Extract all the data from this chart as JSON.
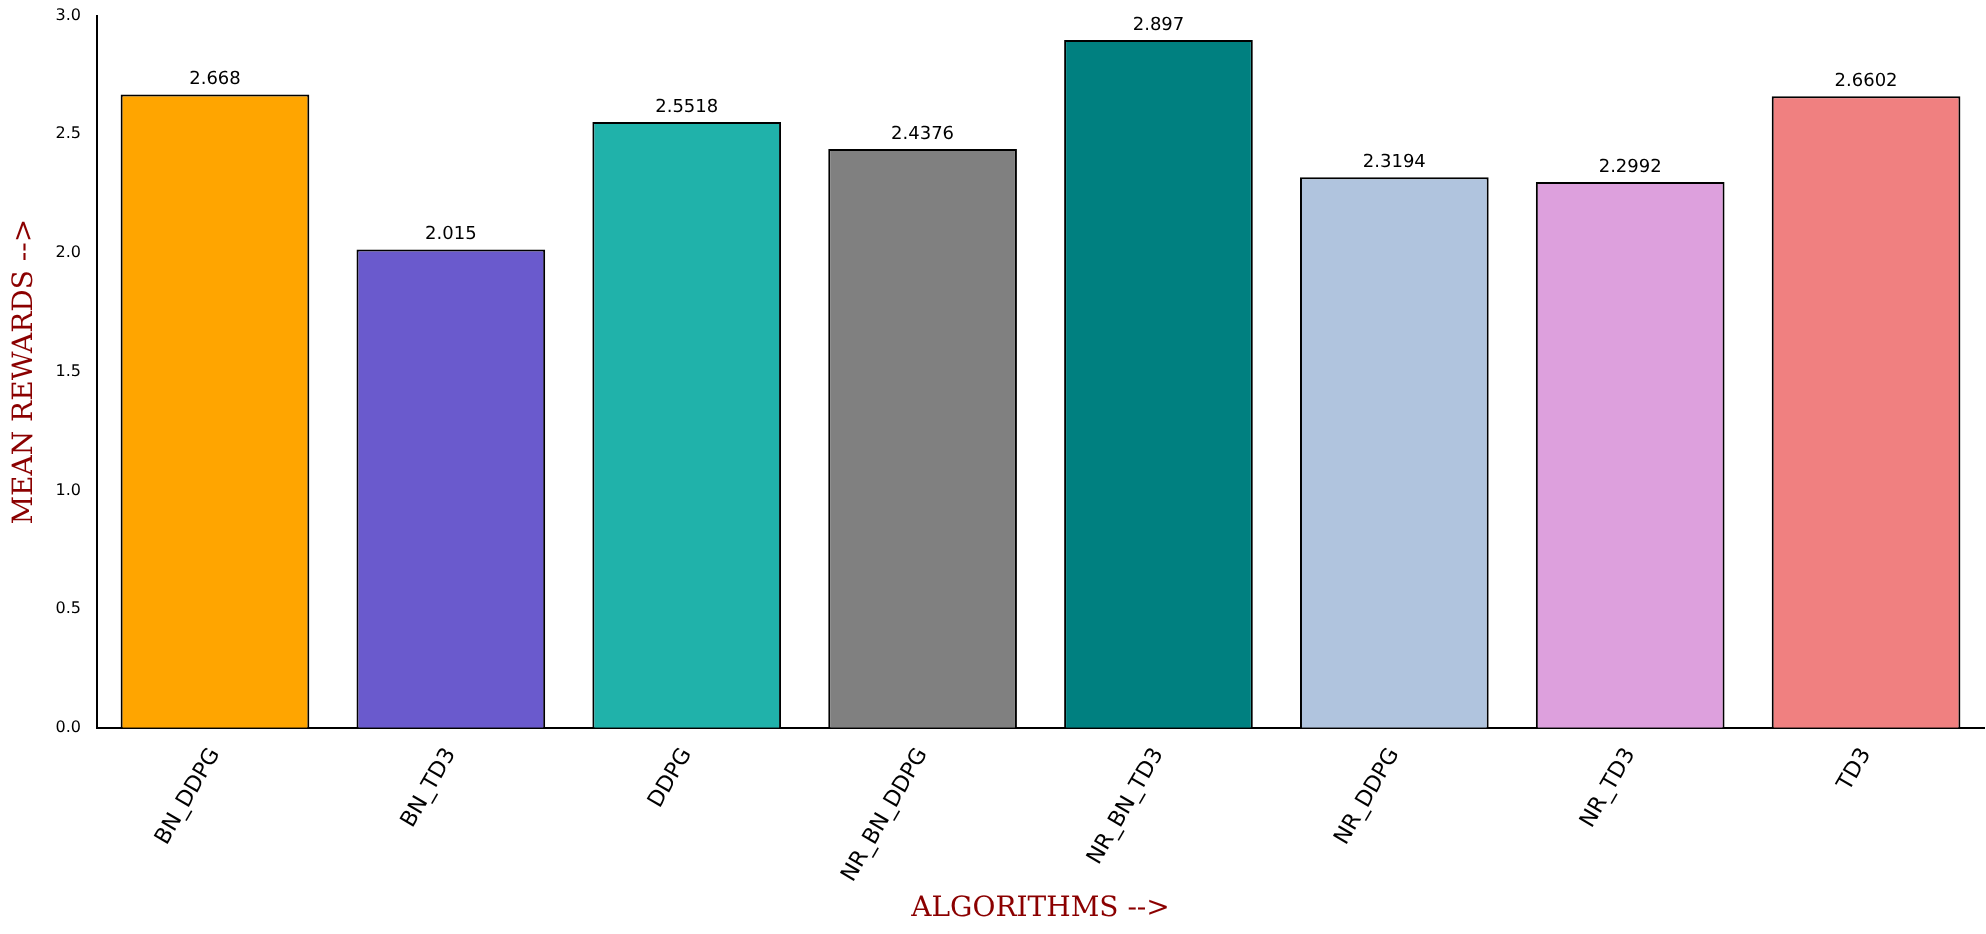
{
  "chart_data": {
    "type": "bar",
    "xlabel": "ALGORITHMS -->",
    "ylabel": "MEAN REWARDS -->",
    "categories": [
      "BN_DDPG",
      "BN_TD3",
      "DDPG",
      "NR_BN_DDPG",
      "NR_BN_TD3",
      "NR_DDPG",
      "NR_TD3",
      "TD3"
    ],
    "values": [
      2.668,
      2.015,
      2.5518,
      2.4376,
      2.897,
      2.3194,
      2.2992,
      2.6602
    ],
    "colors": [
      "#ffa500",
      "#6a5acd",
      "#20b2aa",
      "#808080",
      "#008080",
      "#b0c4de",
      "#dda0dd",
      "#f08080"
    ],
    "ylim": [
      0,
      3.0
    ],
    "yticks": [
      {
        "value": 0,
        "label": "0.0"
      },
      {
        "value": 0.5,
        "label": "0.5"
      },
      {
        "value": 1,
        "label": "1.0"
      },
      {
        "value": 1.5,
        "label": "1.5"
      },
      {
        "value": 2,
        "label": "2.0"
      },
      {
        "value": 2.5,
        "label": "2.5"
      },
      {
        "value": 3,
        "label": "3.0"
      }
    ],
    "data_labels": true,
    "grid": false,
    "legend": false
  }
}
